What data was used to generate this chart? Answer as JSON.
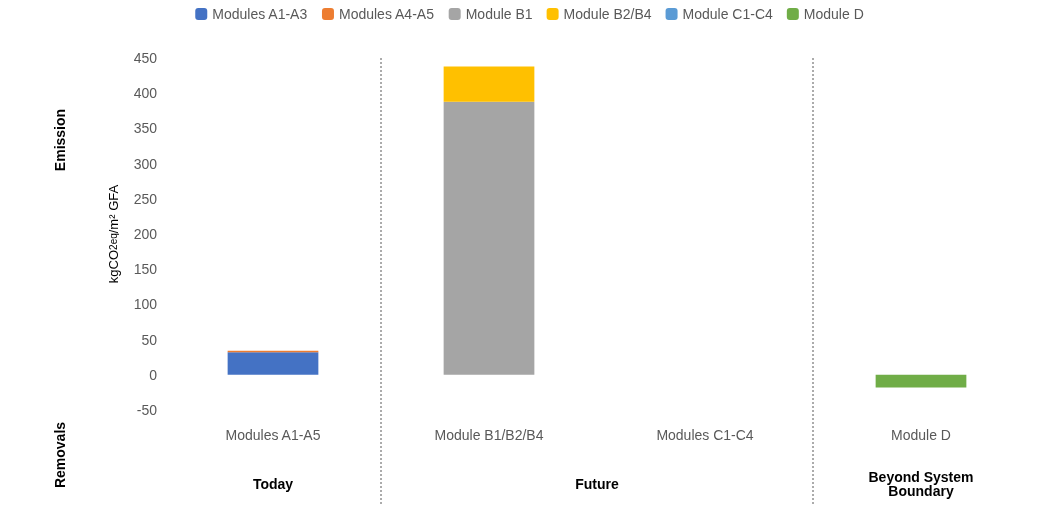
{
  "chart_data": {
    "type": "bar",
    "stacked": true,
    "ylabel": "kgCO$_{2eq}$/m² GFA",
    "categories": [
      "Modules A1-A5",
      "Module B1/B2/B4",
      "Modules C1-C4",
      "Module D"
    ],
    "series": [
      {
        "name": "Modules A1-A3",
        "color": "#4472c4",
        "values": [
          32,
          null,
          null,
          null
        ]
      },
      {
        "name": "Modules A4-A5",
        "color": "#ed7d31",
        "values": [
          2,
          null,
          null,
          null
        ]
      },
      {
        "name": "Module B1",
        "color": "#a5a5a5",
        "values": [
          null,
          388,
          null,
          null
        ]
      },
      {
        "name": "Module B2/B4",
        "color": "#ffc000",
        "values": [
          null,
          50,
          null,
          null
        ]
      },
      {
        "name": "Module C1-C4",
        "color": "#5b9bd5",
        "values": [
          null,
          null,
          0,
          null
        ]
      },
      {
        "name": "Module D",
        "color": "#70ad47",
        "values": [
          null,
          null,
          null,
          -18
        ]
      }
    ],
    "ylim": [
      -50,
      450
    ],
    "yticks": [
      -50,
      0,
      50,
      100,
      150,
      200,
      250,
      300,
      350,
      400,
      450
    ],
    "legend": "top",
    "annotations": [
      "Emission",
      "Removals",
      "Today",
      "Future",
      "Beyond System\nBoundary"
    ]
  }
}
